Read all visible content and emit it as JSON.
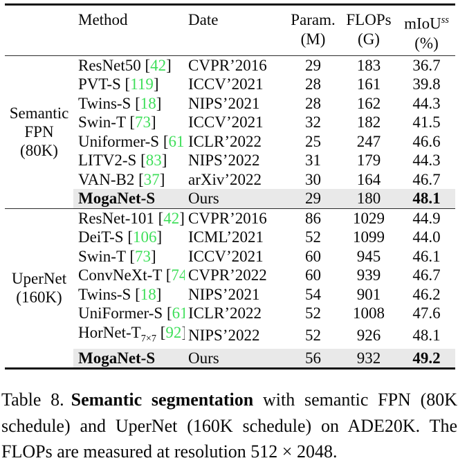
{
  "colors": {
    "cite_green": "#3fdf5a",
    "highlight_bg": "#e9e9e9"
  },
  "header": {
    "method": "Method",
    "date": "Date",
    "param": [
      "Param.",
      "(M)"
    ],
    "flops": [
      "FLOPs",
      "(G)"
    ],
    "miou": {
      "base": "mIoU",
      "sup": "ss",
      "unit": "(%)"
    }
  },
  "groups": [
    {
      "label_lines": [
        "Semantic",
        "FPN",
        "(80K)"
      ],
      "rows": [
        {
          "method": "ResNet50",
          "cite": "42",
          "date": "CVPR’2016",
          "param": "29",
          "flops": "183",
          "miou": "36.7",
          "highlight": false
        },
        {
          "method": "PVT-S",
          "cite": "119",
          "date": "ICCV’2021",
          "param": "28",
          "flops": "161",
          "miou": "39.8",
          "highlight": false
        },
        {
          "method": "Twins-S",
          "cite": "18",
          "date": "NIPS’2021",
          "param": "28",
          "flops": "162",
          "miou": "44.3",
          "highlight": false
        },
        {
          "method": "Swin-T",
          "cite": "73",
          "date": "ICCV’2021",
          "param": "32",
          "flops": "182",
          "miou": "41.5",
          "highlight": false
        },
        {
          "method": "Uniformer-S",
          "cite": "61",
          "date": "ICLR’2022",
          "param": "25",
          "flops": "247",
          "miou": "46.6",
          "highlight": false
        },
        {
          "method": "LITV2-S",
          "cite": "83",
          "date": "NIPS’2022",
          "param": "31",
          "flops": "179",
          "miou": "44.3",
          "highlight": false
        },
        {
          "method": "VAN-B2",
          "cite": "37",
          "date": "arXiv’2022",
          "param": "30",
          "flops": "164",
          "miou": "46.7",
          "highlight": false
        },
        {
          "method": "MogaNet-S",
          "cite": "",
          "date": "Ours",
          "param": "29",
          "flops": "180",
          "miou": "48.1",
          "highlight": true
        }
      ]
    },
    {
      "label_lines": [
        "UperNet",
        "(160K)"
      ],
      "rows": [
        {
          "method": "ResNet-101",
          "cite": "42",
          "date": "CVPR’2016",
          "param": "86",
          "flops": "1029",
          "miou": "44.9",
          "highlight": false
        },
        {
          "method": "DeiT-S",
          "cite": "106",
          "date": "ICML’2021",
          "param": "52",
          "flops": "1099",
          "miou": "44.0",
          "highlight": false
        },
        {
          "method": "Swin-T",
          "cite": "73",
          "date": "ICCV’2021",
          "param": "60",
          "flops": "945",
          "miou": "46.1",
          "highlight": false
        },
        {
          "method": "ConvNeXt-T",
          "cite": "74",
          "date": "CVPR’2022",
          "param": "60",
          "flops": "939",
          "miou": "46.7",
          "highlight": false
        },
        {
          "method": "Twins-S",
          "cite": "18",
          "date": "NIPS’2021",
          "param": "54",
          "flops": "901",
          "miou": "46.2",
          "highlight": false
        },
        {
          "method": "UniFormer-S",
          "cite": "61",
          "date": "ICLR’2022",
          "param": "52",
          "flops": "1008",
          "miou": "47.6",
          "highlight": false
        },
        {
          "method": "HorNet-T",
          "sub": "7×7",
          "cite": "92",
          "date": "NIPS’2022",
          "param": "52",
          "flops": "926",
          "miou": "48.1",
          "highlight": false
        },
        {
          "method": "MogaNet-S",
          "cite": "",
          "date": "Ours",
          "param": "56",
          "flops": "932",
          "miou": "49.2",
          "highlight": true
        }
      ]
    }
  ],
  "caption": {
    "label": "Table 8.",
    "bold": "Semantic segmentation",
    "rest": " with semantic FPN (80K schedule) and UperNet (160K schedule) on ADE20K. The FLOPs are measured at resolution 512 × 2048."
  }
}
